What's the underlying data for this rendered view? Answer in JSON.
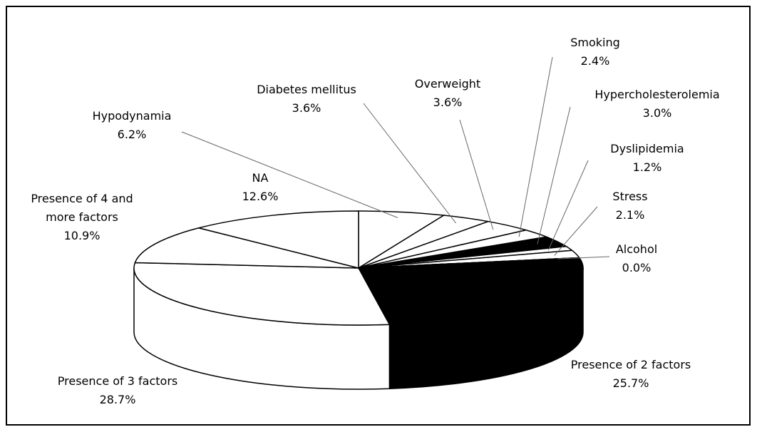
{
  "chart_data": {
    "type": "pie",
    "categories": [
      "Hypodynamia",
      "Diabetes mellitus",
      "Overweight",
      "Smoking",
      "Hypercholesterolemia",
      "Dyslipidemia",
      "Stress",
      "Alcohol",
      "Presence of 2 factors",
      "Presence of 3 factors",
      "Presence of 4 and more factors",
      "NA"
    ],
    "values": [
      6.2,
      3.6,
      3.6,
      2.4,
      3.0,
      1.2,
      2.1,
      0.0,
      25.7,
      28.7,
      10.9,
      12.6
    ],
    "value_labels": [
      "6.2%",
      "3.6%",
      "3.6%",
      "2.4%",
      "3.0%",
      "1.2%",
      "2.1%",
      "0.0%",
      "25.7%",
      "28.7%",
      "10.9%",
      "12.6%"
    ],
    "colors": [
      "#ffffff",
      "#ffffff",
      "#ffffff",
      "#ffffff",
      "#000000",
      "#ffffff",
      "#ffffff",
      "#ffffff",
      "#000000",
      "#ffffff",
      "#ffffff",
      "#ffffff"
    ]
  }
}
